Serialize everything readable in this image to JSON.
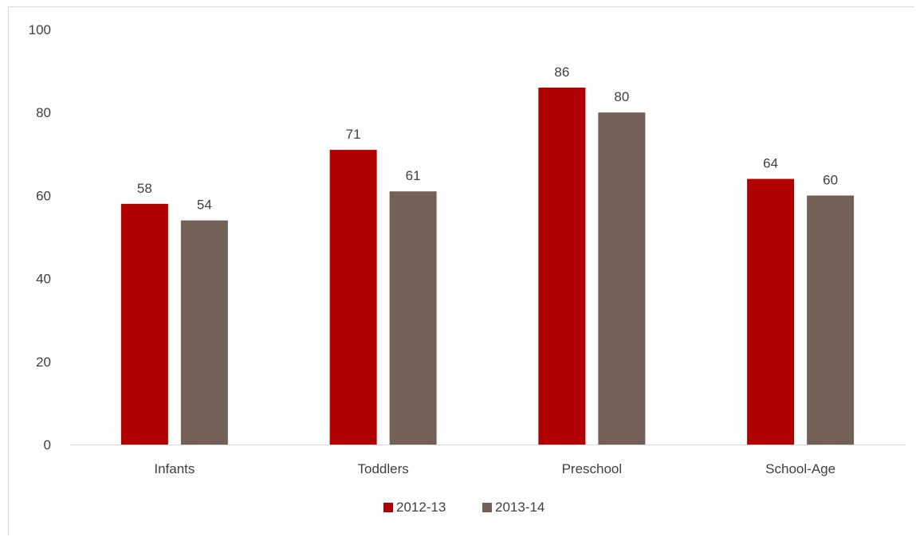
{
  "chart_data": {
    "type": "bar",
    "title": "",
    "xlabel": "",
    "ylabel": "",
    "categories": [
      "Infants",
      "Toddlers",
      "Preschool",
      "School-Age"
    ],
    "series": [
      {
        "name": "2012-13",
        "color": "#b00000",
        "values": [
          58,
          71,
          86,
          64
        ]
      },
      {
        "name": "2013-14",
        "color": "#736057",
        "values": [
          54,
          61,
          80,
          60
        ]
      }
    ],
    "ylim": [
      0,
      100
    ],
    "yticks": [
      0,
      20,
      40,
      60,
      80,
      100
    ],
    "grid": false,
    "legend": "bottom-center",
    "data_labels": true
  }
}
